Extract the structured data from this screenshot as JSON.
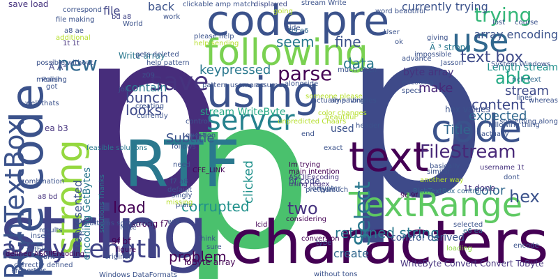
{
  "word_cloud": {
    "words": [
      {
        "text": "p",
        "color": "#472d7b"
      },
      {
        "text": "p",
        "color": "#3e4a89"
      },
      {
        "text": "p",
        "color": "#4ac16d"
      },
      {
        "text": "string",
        "color": "#414487"
      },
      {
        "text": "characters",
        "color": "#440154"
      },
      {
        "text": "RTF",
        "color": "#2a788e"
      },
      {
        "text": "code pre",
        "color": "#3b528b"
      },
      {
        "text": "text",
        "color": "#440154"
      },
      {
        "text": "using",
        "color": "#3b528b"
      },
      {
        "text": "following",
        "color": "#7ad151"
      },
      {
        "text": "TextRange",
        "color": "#5ec962"
      },
      {
        "text": "server",
        "color": "#26828e"
      },
      {
        "text": "code",
        "color": "#3b528b"
      },
      {
        "text": "use",
        "color": "#31688e"
      },
      {
        "text": "pre code",
        "color": "#3b528b"
      },
      {
        "text": "strong",
        "color": "#95d840"
      },
      {
        "text": "RichTextBox",
        "color": "#3b528b"
      },
      {
        "text": "array Length",
        "color": "#414487"
      },
      {
        "text": "Select",
        "color": "#2a788e"
      },
      {
        "text": "FileStream",
        "color": "#482878"
      },
      {
        "text": "trying",
        "color": "#35b779"
      },
      {
        "text": "text box",
        "color": "#3e4a89"
      },
      {
        "text": "save",
        "color": "#46337e"
      },
      {
        "text": "parse",
        "color": "#440154"
      },
      {
        "text": "new",
        "color": "#31688e"
      },
      {
        "text": "data",
        "color": "#2a788e"
      },
      {
        "text": "fine",
        "color": "#3b528b"
      },
      {
        "text": "seem",
        "color": "#2a788e"
      },
      {
        "text": "make",
        "color": "#482878"
      },
      {
        "text": "able",
        "color": "#22a884"
      },
      {
        "text": "stream",
        "color": "#3e4a89"
      },
      {
        "text": "hex",
        "color": "#3b528b"
      },
      {
        "text": "color",
        "color": "#31688e"
      },
      {
        "text": "two",
        "color": "#46337e"
      },
      {
        "text": "load",
        "color": "#440154"
      },
      {
        "text": "problem",
        "color": "#440154"
      },
      {
        "text": "corrupted",
        "color": "#21918c"
      },
      {
        "text": "returned string",
        "color": "#2a788e"
      },
      {
        "text": "bunch",
        "color": "#3e4a89"
      },
      {
        "text": "looks",
        "color": "#3e4a89"
      },
      {
        "text": "Subtitle",
        "color": "#3b528b"
      },
      {
        "text": "Title",
        "color": "#31688e"
      },
      {
        "text": "content",
        "color": "#3e4a89"
      },
      {
        "text": "expected",
        "color": "#31688e"
      },
      {
        "text": "contain",
        "color": "#2a788e"
      },
      {
        "text": "keypressed",
        "color": "#2a788e"
      },
      {
        "text": "byte array",
        "color": "#46337e"
      },
      {
        "text": "Length stream",
        "color": "#21918c"
      },
      {
        "text": "array encoding",
        "color": "#3b528b"
      },
      {
        "text": "currently trying",
        "color": "#3b528b"
      },
      {
        "text": "clicked",
        "color": "#21918c"
      },
      {
        "text": "represented",
        "color": "#3b528b"
      },
      {
        "text": "encoding GetBytes",
        "color": "#2a788e"
      },
      {
        "text": "create",
        "color": "#31688e"
      },
      {
        "text": "control derived",
        "color": "#3b528b"
      },
      {
        "text": "used",
        "color": "#3b528b"
      },
      {
        "text": "stream WriteByte",
        "color": "#22a884"
      },
      {
        "text": "file",
        "color": "#414487"
      },
      {
        "text": "back",
        "color": "#3b528b"
      },
      {
        "text": "save load",
        "color": "#46337e"
      },
      {
        "text": "hex values",
        "color": "#3b528b"
      },
      {
        "text": "bf code",
        "color": "#414487"
      },
      {
        "text": "strong f7",
        "color": "#440154"
      },
      {
        "text": "9f bf",
        "color": "#440154"
      },
      {
        "text": "ToByte array",
        "color": "#440154"
      },
      {
        "text": "WriteByte Convert Convert ToByte",
        "color": "#46337e"
      },
      {
        "text": "Write array",
        "color": "#2a788e"
      },
      {
        "text": "CFE_LINK",
        "color": "#440154"
      },
      {
        "text": "a8 bd",
        "color": "#46337e"
      },
      {
        "text": "f7 a8",
        "color": "#3b528b"
      },
      {
        "text": "9c 9f",
        "color": "#440154"
      },
      {
        "text": "e6 ea",
        "color": "#31688e"
      },
      {
        "text": "ea b3",
        "color": "#46337e"
      },
      {
        "text": "bd a8",
        "color": "#414487"
      },
      {
        "text": "b9 e6",
        "color": "#31688e"
      },
      {
        "text": "a8 ae",
        "color": "#3b528b"
      },
      {
        "text": "1t 1t",
        "color": "#46337e"
      },
      {
        "text": "1t done",
        "color": "#46337e"
      },
      {
        "text": "Ã ³ strong",
        "color": "#2a788e"
      },
      {
        "text": "Ã Ã³",
        "color": "#414487"
      },
      {
        "text": "stream Write",
        "color": "#3b528b"
      },
      {
        "text": "clickable amp match",
        "color": "#3b528b"
      },
      {
        "text": "displayed",
        "color": "#3e4a89"
      },
      {
        "text": "going",
        "color": "#b5de2b"
      },
      {
        "text": "well thats",
        "color": "#3b528b"
      },
      {
        "text": "Im trying",
        "color": "#440154"
      },
      {
        "text": "main intention",
        "color": "#440154"
      },
      {
        "text": "ASCIIEncoding",
        "color": "#46337e"
      },
      {
        "text": "using regex",
        "color": "#46337e"
      },
      {
        "text": "RichTextBox control",
        "color": "#31688e"
      },
      {
        "text": "solutions Thanks",
        "color": "#2a788e"
      },
      {
        "text": "feasible solutions",
        "color": "#2a788e"
      },
      {
        "text": "defined ASCIIEncoding",
        "color": "#440154"
      },
      {
        "text": "pattern username",
        "color": "#3b528b"
      },
      {
        "text": "plain",
        "color": "#3b528b"
      },
      {
        "text": "think",
        "color": "#3b528b"
      },
      {
        "text": "sure",
        "color": "#3b528b"
      },
      {
        "text": "conversion",
        "color": "#440154"
      },
      {
        "text": "type",
        "color": "#3b528b"
      },
      {
        "text": "loading",
        "color": "#8fd744"
      },
      {
        "text": "encode",
        "color": "#3b528b"
      },
      {
        "text": "selected",
        "color": "#3b528b"
      },
      {
        "text": "considering",
        "color": "#440154"
      },
      {
        "text": "pretty much",
        "color": "#3b528b"
      },
      {
        "text": "lcid",
        "color": "#440154"
      },
      {
        "text": "will",
        "color": "#3b528b"
      },
      {
        "text": "Note",
        "color": "#3b528b"
      },
      {
        "text": "figure",
        "color": "#440154"
      },
      {
        "text": "original",
        "color": "#3b528b"
      },
      {
        "text": "Windows DataFormats",
        "color": "#3b528b"
      },
      {
        "text": "without tons",
        "color": "#3b528b"
      },
      {
        "text": "following thing",
        "color": "#3b528b"
      },
      {
        "text": "actually",
        "color": "#3b528b"
      },
      {
        "text": "System Windows",
        "color": "#3b528b"
      },
      {
        "text": "rich text",
        "color": "#31688e"
      },
      {
        "text": "username 1t",
        "color": "#46337e"
      },
      {
        "text": "basically",
        "color": "#3b528b"
      },
      {
        "text": "similar",
        "color": "#3b528b"
      },
      {
        "text": "another way",
        "color": "#b5de2b"
      },
      {
        "text": "corrupter",
        "color": "#3b528b"
      },
      {
        "text": "part",
        "color": "#3b528b"
      },
      {
        "text": "header",
        "color": "#3b528b"
      },
      {
        "text": "exact",
        "color": "#3b528b"
      },
      {
        "text": "end",
        "color": "#3b528b"
      },
      {
        "text": "assume",
        "color": "#3b528b"
      },
      {
        "text": "alongside",
        "color": "#3b528b"
      },
      {
        "text": "control",
        "color": "#3b528b"
      },
      {
        "text": "question",
        "color": "#3b528b"
      },
      {
        "text": "follows",
        "color": "#3b528b"
      },
      {
        "text": "need",
        "color": "#3b528b"
      },
      {
        "text": "default",
        "color": "#3b528b"
      },
      {
        "text": "singly",
        "color": "#3b528b"
      },
      {
        "text": "missing",
        "color": "#b5de2b"
      },
      {
        "text": "combination",
        "color": "#3b528b"
      },
      {
        "text": "results",
        "color": "#3b528b"
      },
      {
        "text": "insert",
        "color": "#3b528b"
      },
      {
        "text": "within",
        "color": "#3b528b"
      },
      {
        "text": "want",
        "color": "#3b528b"
      },
      {
        "text": "Properties",
        "color": "#3b528b"
      },
      {
        "text": "correctly defined",
        "color": "#3b528b"
      },
      {
        "text": "patterns something",
        "color": "#3b528b"
      },
      {
        "text": "possible without",
        "color": "#3b528b"
      },
      {
        "text": "meaning",
        "color": "#3b528b"
      },
      {
        "text": "Polish",
        "color": "#3b528b"
      },
      {
        "text": "got",
        "color": "#3b528b"
      },
      {
        "text": "correspond",
        "color": "#3b528b"
      },
      {
        "text": "file making",
        "color": "#3b528b"
      },
      {
        "text": "additional",
        "color": "#b5de2b"
      },
      {
        "text": "work",
        "color": "#3b528b"
      },
      {
        "text": "please help",
        "color": "#3b528b"
      },
      {
        "text": "gets deleted",
        "color": "#3b528b"
      },
      {
        "text": "help sending",
        "color": "#b5de2b"
      },
      {
        "text": "job",
        "color": "#3b528b"
      },
      {
        "text": "currently",
        "color": "#3b528b"
      },
      {
        "text": "creating",
        "color": "#3b528b"
      },
      {
        "text": "side",
        "color": "#3b528b"
      },
      {
        "text": "lost",
        "color": "#3b528b"
      },
      {
        "text": "course",
        "color": "#3b528b"
      },
      {
        "text": "giving",
        "color": "#3b528b"
      },
      {
        "text": "impossible",
        "color": "#3b528b"
      },
      {
        "text": "advance",
        "color": "#3b528b"
      },
      {
        "text": "specs",
        "color": "#3b528b"
      },
      {
        "text": "encoding",
        "color": "#3b528b"
      },
      {
        "text": "much open",
        "color": "#3b528b"
      },
      {
        "text": "amp libraries",
        "color": "#3b528b"
      },
      {
        "text": "word beautiful",
        "color": "#3b528b"
      },
      {
        "text": "User",
        "color": "#3b528b"
      },
      {
        "text": "Jasson",
        "color": "#3b528b"
      },
      {
        "text": "lines",
        "color": "#3b528b"
      },
      {
        "text": "whereas",
        "color": "#3b528b"
      },
      {
        "text": "something along",
        "color": "#3b528b"
      },
      {
        "text": "dont",
        "color": "#3b528b"
      },
      {
        "text": "unpredicted Chaars",
        "color": "#b5de2b"
      },
      {
        "text": "someone please",
        "color": "#b5de2b"
      },
      {
        "text": "actually saving",
        "color": "#3b528b"
      },
      {
        "text": "color changes",
        "color": "#b5de2b"
      },
      {
        "text": "ok",
        "color": "#3b528b"
      },
      {
        "text": "z09",
        "color": "#3b528b"
      },
      {
        "text": "help pattern",
        "color": "#3b528b"
      },
      {
        "text": "beautiful",
        "color": "#b5de2b"
      },
      {
        "text": "World",
        "color": "#3b528b"
      },
      {
        "text": "range",
        "color": "#3b528b"
      }
    ]
  }
}
